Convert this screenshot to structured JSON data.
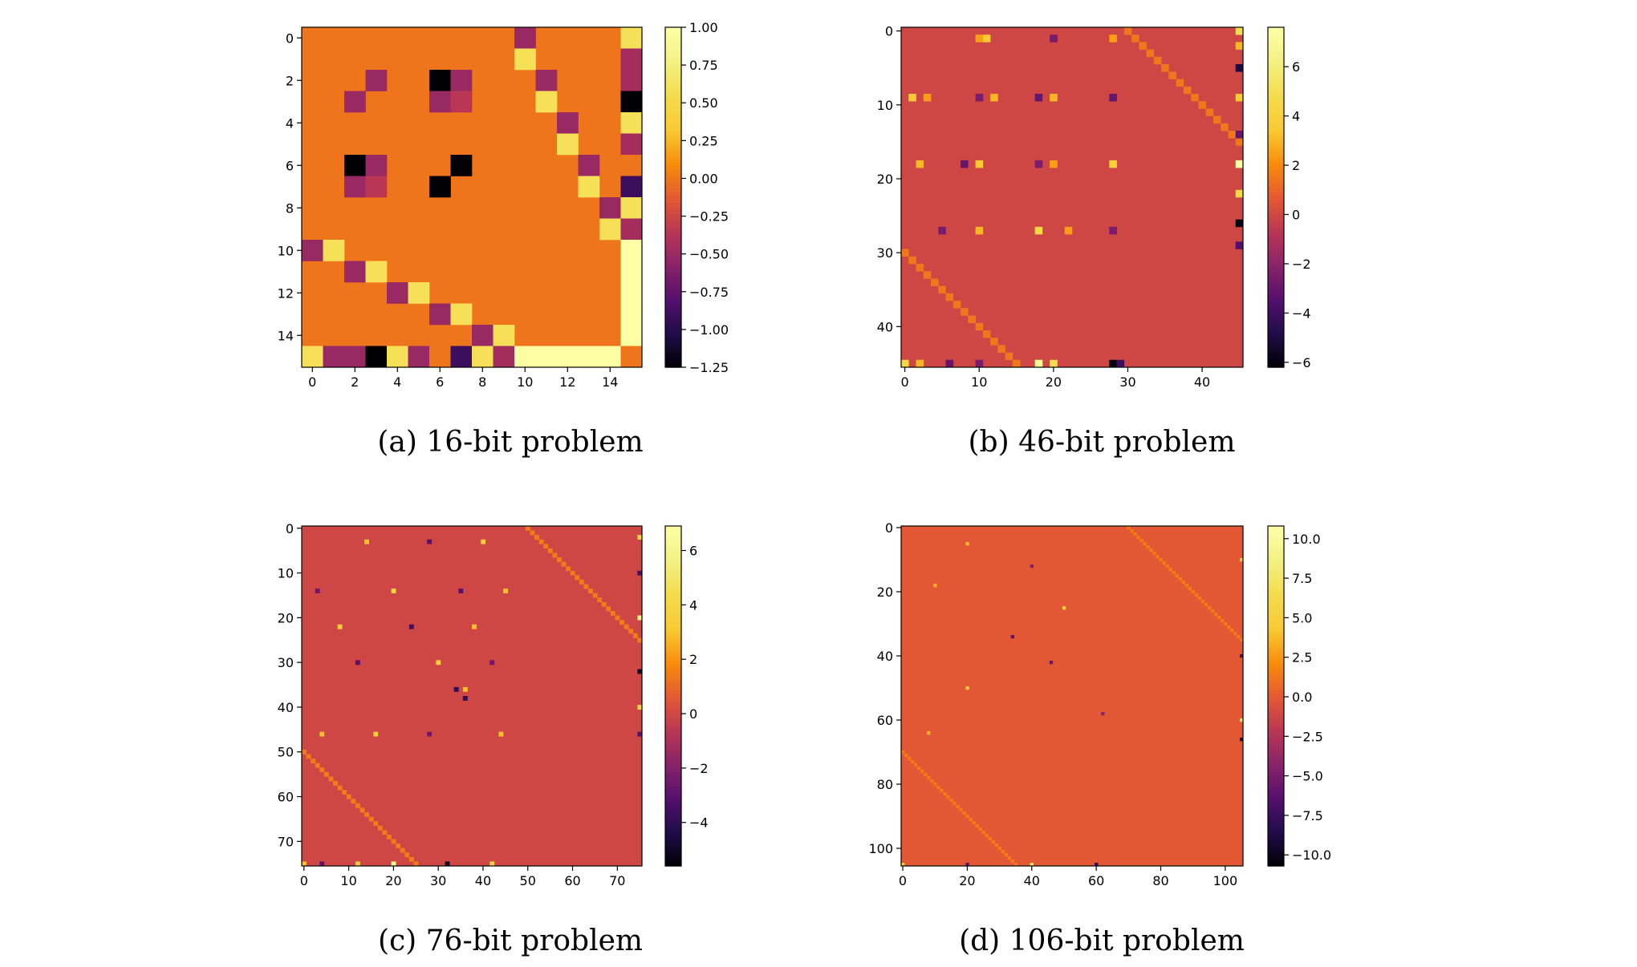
{
  "chart_data": [
    {
      "type": "heatmap",
      "n": 16,
      "caption": "(a) 16-bit problem",
      "colormap": "inferno",
      "vmin": -1.25,
      "vmax": 1.0,
      "background_value": 0.0,
      "x_ticks": [
        0,
        2,
        4,
        6,
        8,
        10,
        12,
        14
      ],
      "y_ticks": [
        0,
        2,
        4,
        6,
        8,
        10,
        12,
        14
      ],
      "colorbar_ticks": [
        "1.00",
        "0.75",
        "0.50",
        "0.25",
        "0.00",
        "−0.25",
        "−0.50",
        "−0.75",
        "−1.00",
        "−1.25"
      ],
      "colorbar_tick_values": [
        1.0,
        0.75,
        0.5,
        0.25,
        0.0,
        -0.25,
        -0.5,
        -0.75,
        -1.0,
        -1.25
      ],
      "cells": [
        [
          0,
          10,
          -0.5
        ],
        [
          0,
          15,
          0.6
        ],
        [
          1,
          10,
          0.6
        ],
        [
          1,
          15,
          -0.45
        ],
        [
          2,
          3,
          -0.5
        ],
        [
          2,
          6,
          -1.25
        ],
        [
          2,
          7,
          -0.5
        ],
        [
          2,
          11,
          -0.5
        ],
        [
          2,
          15,
          -0.45
        ],
        [
          3,
          2,
          -0.5
        ],
        [
          3,
          6,
          -0.5
        ],
        [
          3,
          7,
          -0.35
        ],
        [
          3,
          11,
          0.6
        ],
        [
          3,
          15,
          -1.25
        ],
        [
          4,
          12,
          -0.5
        ],
        [
          4,
          15,
          0.6
        ],
        [
          5,
          12,
          0.6
        ],
        [
          5,
          15,
          -0.45
        ],
        [
          6,
          2,
          -1.25
        ],
        [
          6,
          3,
          -0.5
        ],
        [
          6,
          7,
          -1.25
        ],
        [
          6,
          13,
          -0.5
        ],
        [
          6,
          15,
          0.0
        ],
        [
          7,
          2,
          -0.5
        ],
        [
          7,
          3,
          -0.35
        ],
        [
          7,
          6,
          -1.25
        ],
        [
          7,
          13,
          0.6
        ],
        [
          7,
          15,
          -0.9
        ],
        [
          8,
          14,
          -0.5
        ],
        [
          8,
          15,
          0.6
        ],
        [
          9,
          14,
          0.6
        ],
        [
          9,
          15,
          -0.45
        ],
        [
          10,
          0,
          -0.5
        ],
        [
          10,
          1,
          0.6
        ],
        [
          10,
          15,
          1.0
        ],
        [
          11,
          2,
          -0.5
        ],
        [
          11,
          3,
          0.6
        ],
        [
          11,
          15,
          1.0
        ],
        [
          12,
          4,
          -0.5
        ],
        [
          12,
          5,
          0.6
        ],
        [
          12,
          15,
          1.0
        ],
        [
          13,
          6,
          -0.5
        ],
        [
          13,
          7,
          0.6
        ],
        [
          13,
          15,
          1.0
        ],
        [
          14,
          8,
          -0.5
        ],
        [
          14,
          9,
          0.6
        ],
        [
          14,
          15,
          1.0
        ],
        [
          15,
          0,
          0.6
        ],
        [
          15,
          1,
          -0.5
        ],
        [
          15,
          2,
          -0.5
        ],
        [
          15,
          3,
          -1.25
        ],
        [
          15,
          4,
          0.6
        ],
        [
          15,
          5,
          -0.5
        ],
        [
          15,
          6,
          0.0
        ],
        [
          15,
          7,
          -0.9
        ],
        [
          15,
          8,
          0.6
        ],
        [
          15,
          9,
          -0.45
        ],
        [
          15,
          10,
          1.0
        ],
        [
          15,
          11,
          1.0
        ],
        [
          15,
          12,
          1.0
        ],
        [
          15,
          13,
          1.0
        ],
        [
          15,
          14,
          1.0
        ],
        [
          15,
          15,
          0.0
        ]
      ]
    },
    {
      "type": "heatmap",
      "n": 46,
      "caption": "(b) 46-bit problem",
      "colormap": "inferno",
      "vmin": -6.2,
      "vmax": 7.6,
      "background_value": 0.0,
      "x_ticks": [
        0,
        10,
        20,
        30,
        40
      ],
      "y_ticks": [
        0,
        10,
        20,
        30,
        40
      ],
      "colorbar_ticks": [
        "6",
        "4",
        "2",
        "0",
        "−2",
        "−4",
        "−6"
      ],
      "colorbar_tick_values": [
        6,
        4,
        2,
        0,
        -2,
        -4,
        -6
      ],
      "diagonals": [
        {
          "row_start": 0,
          "col_start": 30,
          "length": 16,
          "value": 1.5
        },
        {
          "row_start": 30,
          "col_start": 0,
          "length": 16,
          "value": 1.5
        }
      ],
      "cells": [
        [
          1,
          10,
          2.5
        ],
        [
          1,
          11,
          3.5
        ],
        [
          1,
          20,
          -2.5
        ],
        [
          1,
          28,
          2.5
        ],
        [
          9,
          1,
          3.5
        ],
        [
          9,
          3,
          2.5
        ],
        [
          9,
          10,
          -2.5
        ],
        [
          9,
          12,
          3.0
        ],
        [
          9,
          18,
          -3.0
        ],
        [
          9,
          20,
          3.0
        ],
        [
          9,
          28,
          -3.0
        ],
        [
          18,
          2,
          3.0
        ],
        [
          18,
          8,
          -3.0
        ],
        [
          18,
          10,
          3.5
        ],
        [
          18,
          18,
          -2.5
        ],
        [
          18,
          20,
          2.5
        ],
        [
          18,
          28,
          4.0
        ],
        [
          27,
          5,
          -2.5
        ],
        [
          27,
          10,
          3.0
        ],
        [
          27,
          18,
          4.5
        ],
        [
          27,
          22,
          2.5
        ],
        [
          27,
          28,
          -2.5
        ],
        [
          45,
          0,
          4.5
        ],
        [
          45,
          2,
          3.0
        ],
        [
          45,
          6,
          -3.0
        ],
        [
          45,
          10,
          -2.5
        ],
        [
          45,
          18,
          7.0
        ],
        [
          45,
          20,
          5.0
        ],
        [
          45,
          28,
          -6.0
        ],
        [
          45,
          29,
          -4.0
        ],
        [
          0,
          45,
          5.0
        ],
        [
          2,
          45,
          3.0
        ],
        [
          5,
          45,
          -5.0
        ],
        [
          9,
          45,
          3.5
        ],
        [
          14,
          45,
          -3.0
        ],
        [
          18,
          45,
          7.5
        ],
        [
          22,
          45,
          4.5
        ],
        [
          26,
          45,
          -6.0
        ],
        [
          29,
          45,
          -3.5
        ]
      ]
    },
    {
      "type": "heatmap",
      "n": 76,
      "caption": "(c) 76-bit problem",
      "colormap": "inferno",
      "vmin": -5.6,
      "vmax": 6.9,
      "background_value": 0.0,
      "x_ticks": [
        0,
        10,
        20,
        30,
        40,
        50,
        60,
        70
      ],
      "y_ticks": [
        0,
        10,
        20,
        30,
        40,
        50,
        60,
        70
      ],
      "colorbar_ticks": [
        "6",
        "4",
        "2",
        "0",
        "−2",
        "−4"
      ],
      "colorbar_tick_values": [
        6,
        4,
        2,
        0,
        -2,
        -4
      ],
      "diagonals": [
        {
          "row_start": 0,
          "col_start": 50,
          "length": 26,
          "value": 1.5
        },
        {
          "row_start": 50,
          "col_start": 0,
          "length": 26,
          "value": 1.5
        }
      ],
      "cells": [
        [
          3,
          14,
          3.0
        ],
        [
          3,
          28,
          -3.0
        ],
        [
          3,
          40,
          3.5
        ],
        [
          14,
          3,
          -2.5
        ],
        [
          14,
          20,
          4.0
        ],
        [
          14,
          35,
          -3.0
        ],
        [
          14,
          45,
          3.0
        ],
        [
          22,
          8,
          3.5
        ],
        [
          22,
          24,
          -3.5
        ],
        [
          22,
          38,
          3.0
        ],
        [
          30,
          12,
          -3.0
        ],
        [
          30,
          30,
          3.5
        ],
        [
          30,
          42,
          -2.5
        ],
        [
          36,
          34,
          -4.0
        ],
        [
          36,
          36,
          3.0
        ],
        [
          38,
          36,
          -4.0
        ],
        [
          46,
          4,
          3.0
        ],
        [
          46,
          16,
          3.5
        ],
        [
          46,
          28,
          -2.5
        ],
        [
          46,
          44,
          3.0
        ],
        [
          75,
          0,
          3.0
        ],
        [
          75,
          4,
          -3.0
        ],
        [
          75,
          12,
          3.5
        ],
        [
          75,
          20,
          6.5
        ],
        [
          75,
          32,
          -5.0
        ],
        [
          75,
          42,
          4.0
        ],
        [
          2,
          75,
          4.0
        ],
        [
          10,
          75,
          -3.5
        ],
        [
          20,
          75,
          6.0
        ],
        [
          32,
          75,
          -5.0
        ],
        [
          40,
          75,
          4.0
        ],
        [
          46,
          75,
          -3.0
        ]
      ]
    },
    {
      "type": "heatmap",
      "n": 106,
      "caption": "(d) 106-bit problem",
      "colormap": "inferno",
      "vmin": -10.7,
      "vmax": 10.8,
      "background_value": 0.0,
      "x_ticks": [
        0,
        20,
        40,
        60,
        80,
        100
      ],
      "y_ticks": [
        0,
        20,
        40,
        60,
        80,
        100
      ],
      "colorbar_ticks": [
        "10.0",
        "7.5",
        "5.0",
        "2.5",
        "0.0",
        "−2.5",
        "−5.0",
        "−7.5",
        "−10.0"
      ],
      "colorbar_tick_values": [
        10.0,
        7.5,
        5.0,
        2.5,
        0.0,
        -2.5,
        -5.0,
        -7.5,
        -10.0
      ],
      "diagonals": [
        {
          "row_start": 0,
          "col_start": 70,
          "length": 36,
          "value": 1.5
        },
        {
          "row_start": 70,
          "col_start": 0,
          "length": 36,
          "value": 1.5
        }
      ],
      "cells": [
        [
          5,
          20,
          4.0
        ],
        [
          12,
          40,
          -4.5
        ],
        [
          18,
          10,
          3.5
        ],
        [
          25,
          50,
          5.0
        ],
        [
          34,
          34,
          -6.0
        ],
        [
          42,
          46,
          -5.5
        ],
        [
          50,
          20,
          4.5
        ],
        [
          58,
          62,
          -4.0
        ],
        [
          64,
          8,
          3.5
        ],
        [
          105,
          0,
          5.0
        ],
        [
          105,
          20,
          -6.0
        ],
        [
          105,
          40,
          7.5
        ],
        [
          105,
          60,
          -8.0
        ],
        [
          10,
          105,
          5.0
        ],
        [
          40,
          105,
          -7.0
        ],
        [
          60,
          105,
          8.0
        ],
        [
          66,
          105,
          -9.0
        ]
      ]
    }
  ]
}
